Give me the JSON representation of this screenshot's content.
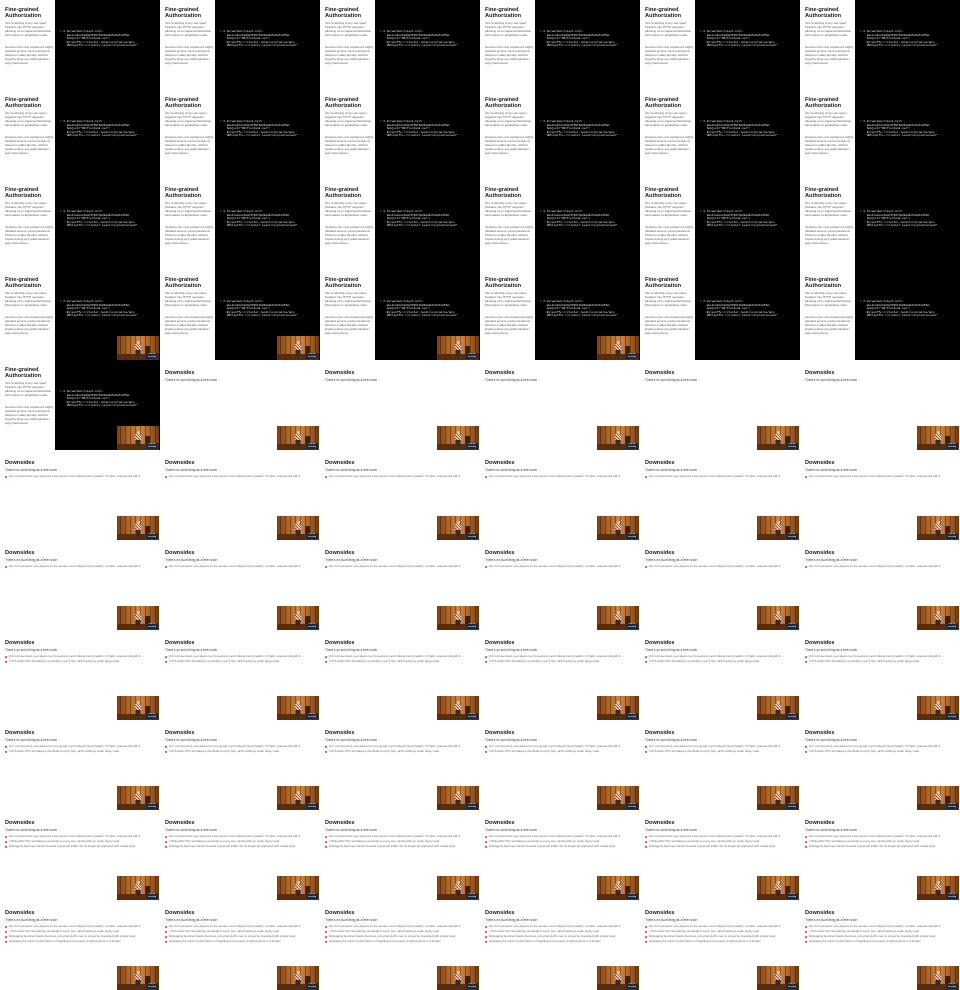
{
  "slide_a": {
    "title": "Fine-grained Authorization",
    "paragraph_1": "Our rendering proxy can inject headers into HTTP requests, allowing us to signal authorization information to application code.",
    "paragraph_2": "Services can now implement highly detailed access control decisions based on caller identity, without implementing any authentication logic themselves.",
    "code_lines": [
      "> X-Forwarded-Client-Cert:",
      "    Hash=a1b2c3d4e5f60718293a4b5c6d7e8f90;",
      "    Subject=\"CN=frontend.svc\";",
      "    By=spiffe://cluster.local/ns/prod/sa/api;",
      "    URI=spiffe://cluster.local/ns/prod/sa/web\""
    ]
  },
  "slide_b": {
    "title": "Downsides",
    "subtitle": "There's no such thing as a free lunch",
    "bullets": [
      "Our microservices now depend on the service mesh sidecar being healthy; if it fails, requests fail with it.",
      "mTLS adds CPU and latency overhead to every hop, which adds up under heavy load.",
      "Debugging becomes harder because encrypted traffic can no longer be inspected with simple tools.",
      "Operating the mesh control plane is a significant new piece of infrastructure to maintain."
    ]
  },
  "video": {
    "overlay_text": "Live talk recording"
  }
}
